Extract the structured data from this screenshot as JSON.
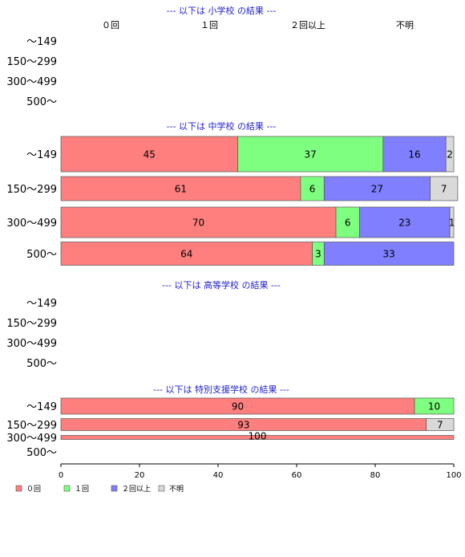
{
  "chart_data": {
    "type": "bar",
    "orientation": "horizontal",
    "stacked": true,
    "xlim": [
      0,
      100
    ],
    "xticks": [
      "0",
      "20",
      "40",
      "60",
      "80",
      "100"
    ],
    "series": [
      {
        "name": "０回",
        "color": "#ff7f7f"
      },
      {
        "name": "１回",
        "color": "#7fff7f"
      },
      {
        "name": "２回以上",
        "color": "#7f7fff"
      },
      {
        "name": "不明",
        "color": "#d9d9d9"
      }
    ],
    "categories": [
      "〜149",
      "150〜299",
      "300〜499",
      "500〜"
    ],
    "column_headers": [
      "０回",
      "１回",
      "２回以上",
      "不明"
    ],
    "panels": [
      {
        "title": "--- 以下は 小学校 の結果 ---",
        "rows": [
          {
            "category": "〜149",
            "values": null
          },
          {
            "category": "150〜299",
            "values": null
          },
          {
            "category": "300〜499",
            "values": null
          },
          {
            "category": "500〜",
            "values": null
          }
        ]
      },
      {
        "title": "--- 以下は 中学校 の結果 ---",
        "rows": [
          {
            "category": "〜149",
            "values": [
              45,
              37,
              16,
              2
            ],
            "labels": [
              "45",
              "37",
              "16",
              "2"
            ]
          },
          {
            "category": "150〜299",
            "values": [
              61,
              6,
              27,
              7
            ],
            "labels": [
              "61",
              "6",
              "27",
              "7"
            ]
          },
          {
            "category": "300〜499",
            "values": [
              70,
              6,
              23,
              1
            ],
            "labels": [
              "70",
              "6",
              "23",
              "1"
            ]
          },
          {
            "category": "500〜",
            "values": [
              64,
              3,
              33,
              0
            ],
            "labels": [
              "64",
              "3",
              "33",
              ""
            ]
          }
        ]
      },
      {
        "title": "--- 以下は 高等学校 の結果 ---",
        "rows": [
          {
            "category": "〜149",
            "values": null
          },
          {
            "category": "150〜299",
            "values": null
          },
          {
            "category": "300〜499",
            "values": null
          },
          {
            "category": "500〜",
            "values": null
          }
        ]
      },
      {
        "title": "--- 以下は 特別支援学校 の結果 ---",
        "rows": [
          {
            "category": "〜149",
            "values": [
              90,
              10,
              0,
              0
            ],
            "labels": [
              "90",
              "10",
              "",
              ""
            ]
          },
          {
            "category": "150〜299",
            "values": [
              93,
              0,
              0,
              7
            ],
            "labels": [
              "93",
              "",
              "",
              "7"
            ]
          },
          {
            "category": "300〜499",
            "values": [
              100,
              0,
              0,
              0
            ],
            "labels": [
              "100",
              "",
              "",
              ""
            ]
          },
          {
            "category": "500〜",
            "values": null
          }
        ]
      }
    ]
  }
}
